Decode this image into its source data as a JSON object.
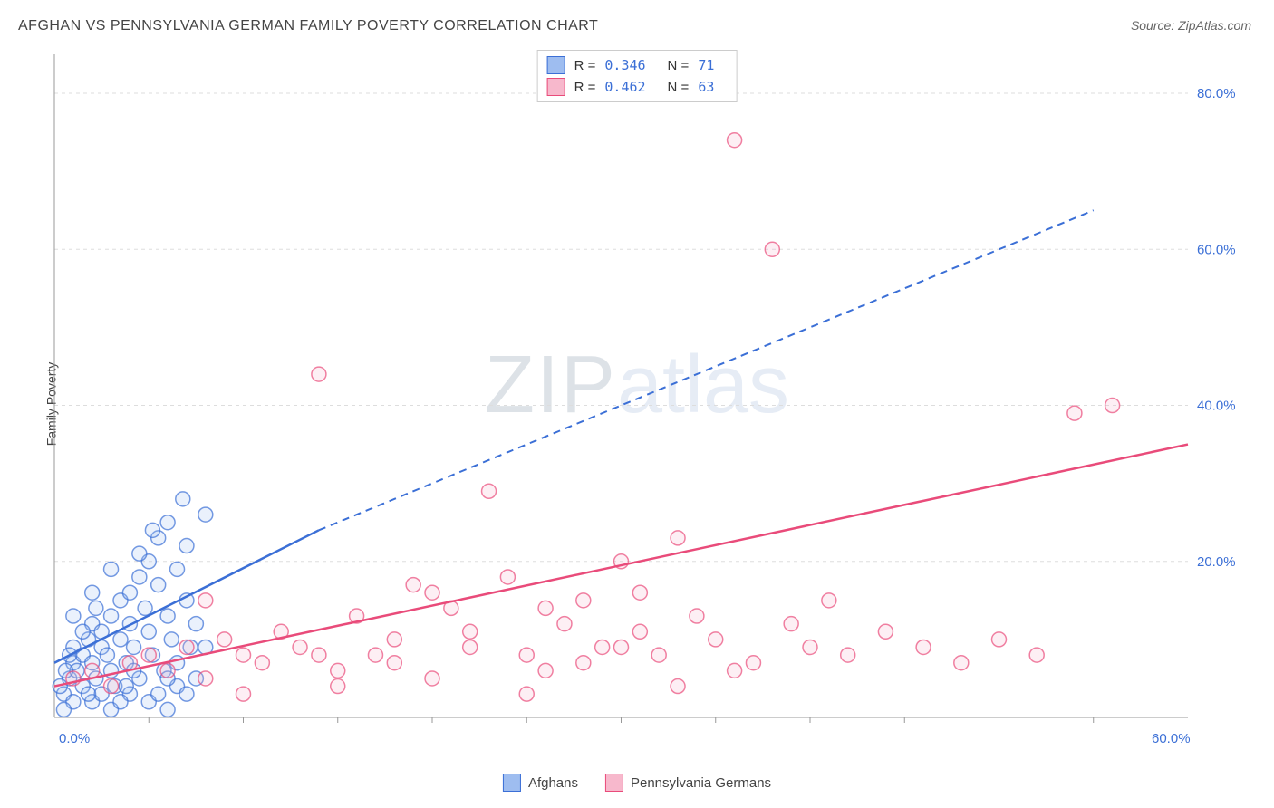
{
  "title": "AFGHAN VS PENNSYLVANIA GERMAN FAMILY POVERTY CORRELATION CHART",
  "source_label": "Source:",
  "source_name": "ZipAtlas.com",
  "y_axis_label": "Family Poverty",
  "watermark_a": "ZIP",
  "watermark_b": "atlas",
  "chart": {
    "type": "scatter",
    "xlim": [
      0,
      60
    ],
    "ylim": [
      0,
      85
    ],
    "x_ticks": [
      0,
      60
    ],
    "x_tick_labels": [
      "0.0%",
      "60.0%"
    ],
    "x_minor_ticks": [
      5,
      10,
      15,
      20,
      25,
      30,
      35,
      40,
      45,
      50,
      55
    ],
    "y_ticks": [
      20,
      40,
      60,
      80
    ],
    "y_tick_labels": [
      "20.0%",
      "40.0%",
      "60.0%",
      "80.0%"
    ],
    "grid_color": "#dddddd",
    "grid_dash": "4,4",
    "axis_color": "#999999",
    "background_color": "#ffffff",
    "tick_label_color": "#3b6fd6",
    "tick_label_fontsize": 15,
    "marker_radius": 8,
    "marker_fill_opacity": 0.22,
    "marker_stroke_width": 1.5,
    "trend_line_width": 2.5,
    "trend_dash": "8,6",
    "series": [
      {
        "name": "Afghans",
        "color": "#3b6fd6",
        "fill": "#9ebdf0",
        "R": "0.346",
        "N": "71",
        "trend": {
          "x1": 0,
          "y1": 7,
          "x2_solid": 14,
          "y2_solid": 24,
          "x2": 55,
          "y2": 65
        },
        "points": [
          [
            0.5,
            3
          ],
          [
            0.8,
            5
          ],
          [
            1,
            7
          ],
          [
            1,
            9
          ],
          [
            1.2,
            6
          ],
          [
            1.5,
            8
          ],
          [
            1.5,
            4
          ],
          [
            1.8,
            10
          ],
          [
            2,
            12
          ],
          [
            2,
            7
          ],
          [
            2.2,
            5
          ],
          [
            2.5,
            11
          ],
          [
            2.5,
            9
          ],
          [
            2.8,
            8
          ],
          [
            3,
            13
          ],
          [
            3,
            6
          ],
          [
            3.2,
            4
          ],
          [
            3.5,
            15
          ],
          [
            3.5,
            10
          ],
          [
            3.8,
            7
          ],
          [
            4,
            16
          ],
          [
            4,
            12
          ],
          [
            4.2,
            9
          ],
          [
            4.5,
            18
          ],
          [
            4.5,
            5
          ],
          [
            4.8,
            14
          ],
          [
            5,
            20
          ],
          [
            5,
            11
          ],
          [
            5.2,
            8
          ],
          [
            5.5,
            23
          ],
          [
            5.5,
            17
          ],
          [
            5.8,
            6
          ],
          [
            6,
            25
          ],
          [
            6,
            13
          ],
          [
            6.2,
            10
          ],
          [
            6.5,
            19
          ],
          [
            6.5,
            4
          ],
          [
            6.8,
            28
          ],
          [
            7,
            15
          ],
          [
            7,
            22
          ],
          [
            7.2,
            9
          ],
          [
            7.5,
            12
          ],
          [
            3,
            1
          ],
          [
            2,
            2
          ],
          [
            1,
            2
          ],
          [
            0.5,
            1
          ],
          [
            4,
            3
          ],
          [
            5,
            2
          ],
          [
            8,
            26
          ],
          [
            2.5,
            3
          ],
          [
            3.5,
            2
          ],
          [
            1.8,
            3
          ],
          [
            2.2,
            14
          ],
          [
            1.5,
            11
          ],
          [
            0.8,
            8
          ],
          [
            4.2,
            6
          ],
          [
            3.8,
            4
          ],
          [
            5.5,
            3
          ],
          [
            6,
            5
          ],
          [
            1,
            13
          ],
          [
            2,
            16
          ],
          [
            3,
            19
          ],
          [
            4.5,
            21
          ],
          [
            5.2,
            24
          ],
          [
            6.5,
            7
          ],
          [
            7,
            3
          ],
          [
            7.5,
            5
          ],
          [
            8,
            9
          ],
          [
            0.3,
            4
          ],
          [
            0.6,
            6
          ],
          [
            6,
            1
          ]
        ]
      },
      {
        "name": "Pennsylvania Germans",
        "color": "#e94b7a",
        "fill": "#f7b8cc",
        "R": "0.462",
        "N": "63",
        "trend": {
          "x1": 0,
          "y1": 4,
          "x2_solid": 60,
          "y2_solid": 35,
          "x2": 60,
          "y2": 35
        },
        "points": [
          [
            1,
            5
          ],
          [
            2,
            6
          ],
          [
            3,
            4
          ],
          [
            4,
            7
          ],
          [
            5,
            8
          ],
          [
            6,
            6
          ],
          [
            7,
            9
          ],
          [
            8,
            5
          ],
          [
            9,
            10
          ],
          [
            10,
            8
          ],
          [
            11,
            7
          ],
          [
            12,
            11
          ],
          [
            13,
            9
          ],
          [
            14,
            44
          ],
          [
            15,
            6
          ],
          [
            16,
            13
          ],
          [
            17,
            8
          ],
          [
            18,
            10
          ],
          [
            19,
            17
          ],
          [
            20,
            16
          ],
          [
            21,
            14
          ],
          [
            22,
            9
          ],
          [
            23,
            29
          ],
          [
            24,
            18
          ],
          [
            25,
            8
          ],
          [
            26,
            6
          ],
          [
            27,
            12
          ],
          [
            28,
            15
          ],
          [
            29,
            9
          ],
          [
            30,
            20
          ],
          [
            31,
            11
          ],
          [
            32,
            8
          ],
          [
            33,
            23
          ],
          [
            34,
            13
          ],
          [
            35,
            10
          ],
          [
            36,
            74
          ],
          [
            37,
            7
          ],
          [
            38,
            60
          ],
          [
            39,
            12
          ],
          [
            40,
            9
          ],
          [
            41,
            15
          ],
          [
            42,
            8
          ],
          [
            44,
            11
          ],
          [
            46,
            9
          ],
          [
            48,
            7
          ],
          [
            50,
            10
          ],
          [
            52,
            8
          ],
          [
            54,
            39
          ],
          [
            56,
            40
          ],
          [
            10,
            3
          ],
          [
            15,
            4
          ],
          [
            20,
            5
          ],
          [
            25,
            3
          ],
          [
            18,
            7
          ],
          [
            22,
            11
          ],
          [
            26,
            14
          ],
          [
            30,
            9
          ],
          [
            33,
            4
          ],
          [
            36,
            6
          ],
          [
            28,
            7
          ],
          [
            31,
            16
          ],
          [
            14,
            8
          ],
          [
            8,
            15
          ]
        ]
      }
    ]
  },
  "legend_top": {
    "r_label": "R  =",
    "n_label": "N  ="
  },
  "legend_bottom": {
    "items": [
      "Afghans",
      "Pennsylvania Germans"
    ]
  }
}
